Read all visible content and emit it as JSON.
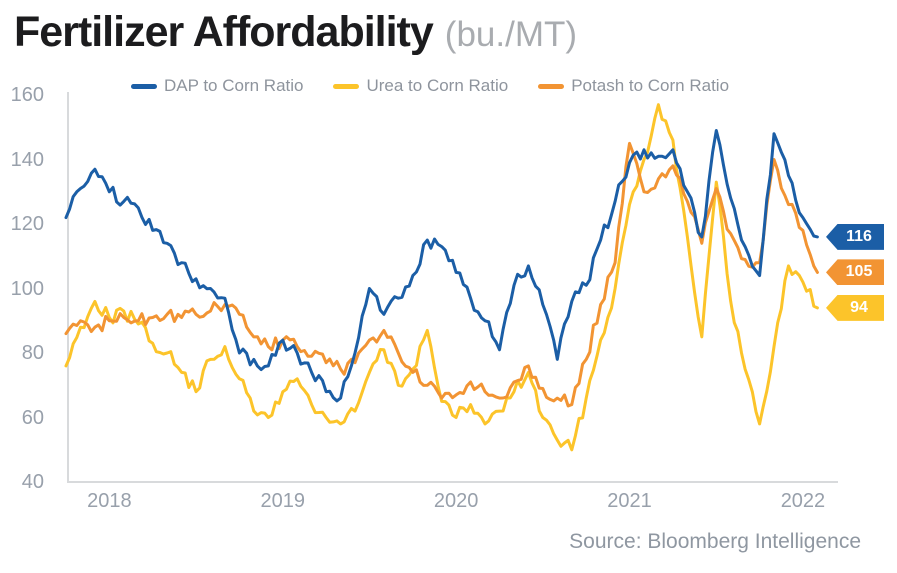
{
  "title": {
    "main": "Fertilizer Affordability",
    "unit": "(bu./MT)"
  },
  "source": "Source: Bloomberg Intelligence",
  "colors": {
    "dap_blue": "#1b5ea6",
    "urea_yellow": "#fcc42a",
    "potash_orange": "#f29433",
    "title_text": "#1c1c1e",
    "unit_text": "#a9acb0",
    "legend_text": "#8e949d",
    "axis_text": "#98a0ab",
    "axis_line": "#d8dadc",
    "source_text": "#8f97a1"
  },
  "legend": [
    {
      "label": "DAP to Corn Ratio",
      "color": "#1b5ea6"
    },
    {
      "label": "Urea to Corn Ratio",
      "color": "#fcc42a"
    },
    {
      "label": "Potash to Corn Ratio",
      "color": "#f29433"
    }
  ],
  "end_labels": [
    {
      "label": "116",
      "value": 116,
      "series": "DAP to Corn Ratio",
      "color": "#1b5ea6"
    },
    {
      "label": "105",
      "value": 105,
      "series": "Potash to Corn Ratio",
      "color": "#f29433"
    },
    {
      "label": "94",
      "value": 94,
      "series": "Urea to Corn Ratio",
      "color": "#fcc42a"
    }
  ],
  "chart_data": {
    "type": "line",
    "title": "Fertilizer Affordability (bu./MT)",
    "xlabel": "",
    "ylabel": "",
    "ylim": [
      40,
      160
    ],
    "yticks": [
      160,
      140,
      120,
      100,
      80,
      60,
      40
    ],
    "xticks": [
      "2018",
      "2019",
      "2020",
      "2021",
      "2022"
    ],
    "grid": false,
    "legend_position": "top",
    "x_frequency": "monthly",
    "categories": [
      "2017-10",
      "2017-11",
      "2017-12",
      "2018-01",
      "2018-02",
      "2018-03",
      "2018-04",
      "2018-05",
      "2018-06",
      "2018-07",
      "2018-08",
      "2018-09",
      "2018-10",
      "2018-11",
      "2018-12",
      "2019-01",
      "2019-02",
      "2019-03",
      "2019-04",
      "2019-05",
      "2019-06",
      "2019-07",
      "2019-08",
      "2019-09",
      "2019-10",
      "2019-11",
      "2019-12",
      "2020-01",
      "2020-02",
      "2020-03",
      "2020-04",
      "2020-05",
      "2020-06",
      "2020-07",
      "2020-08",
      "2020-09",
      "2020-10",
      "2020-11",
      "2020-12",
      "2021-01",
      "2021-02",
      "2021-03",
      "2021-04",
      "2021-05",
      "2021-06",
      "2021-07",
      "2021-08",
      "2021-09",
      "2021-10",
      "2021-11",
      "2021-12",
      "2022-01",
      "2022-02"
    ],
    "series": [
      {
        "name": "DAP to Corn Ratio",
        "color": "#1b5ea6",
        "end_value": 116,
        "values": [
          122,
          131,
          137,
          130,
          127,
          125,
          118,
          114,
          108,
          103,
          100,
          97,
          80,
          78,
          76,
          84,
          80,
          74,
          68,
          66,
          80,
          100,
          92,
          97,
          104,
          115,
          113,
          105,
          97,
          90,
          81,
          101,
          107,
          95,
          78,
          96,
          101,
          115,
          127,
          139,
          143,
          141,
          143,
          130,
          116,
          149,
          128,
          113,
          104,
          148,
          135,
          122,
          116
        ]
      },
      {
        "name": "Urea to Corn Ratio",
        "color": "#fcc42a",
        "end_value": 94,
        "values": [
          76,
          88,
          96,
          91,
          93,
          89,
          83,
          80,
          74,
          68,
          78,
          82,
          72,
          62,
          60,
          68,
          72,
          64,
          60,
          58,
          62,
          74,
          81,
          70,
          75,
          87,
          65,
          60,
          64,
          58,
          62,
          68,
          74,
          60,
          53,
          50,
          66,
          84,
          100,
          126,
          140,
          157,
          146,
          116,
          85,
          133,
          96,
          75,
          58,
          82,
          107,
          102,
          94
        ]
      },
      {
        "name": "Potash to Corn Ratio",
        "color": "#f29433",
        "end_value": 105,
        "values": [
          86,
          90,
          88,
          90,
          91,
          90,
          91,
          92,
          91,
          92,
          93,
          95,
          92,
          85,
          82,
          84,
          82,
          79,
          77,
          75,
          77,
          84,
          87,
          80,
          74,
          70,
          66,
          67,
          71,
          68,
          66,
          71,
          76,
          69,
          66,
          64,
          78,
          95,
          108,
          145,
          130,
          134,
          138,
          127,
          114,
          131,
          117,
          109,
          108,
          140,
          126,
          118,
          105
        ]
      }
    ]
  }
}
